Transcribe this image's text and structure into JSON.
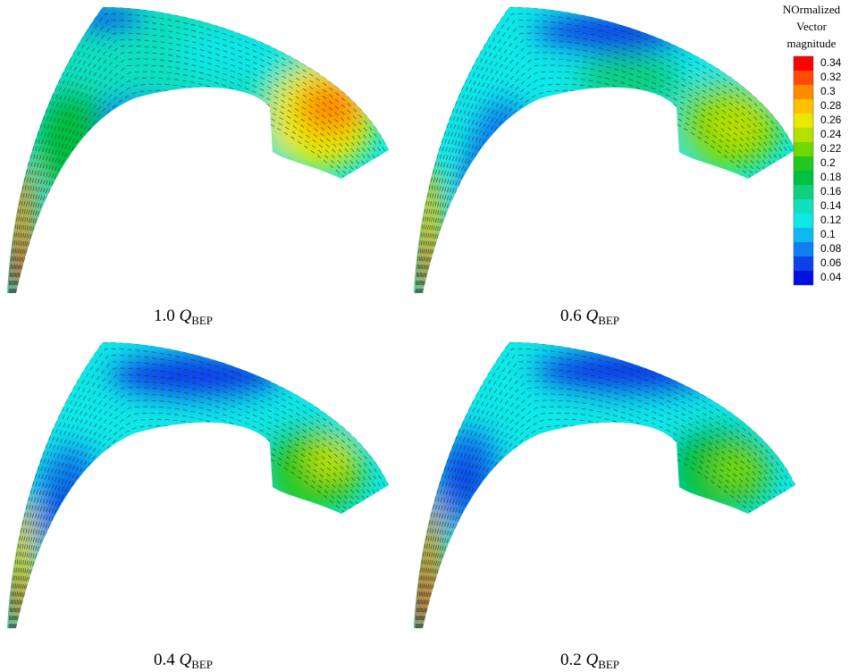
{
  "colorbar": {
    "title": [
      "NOrmalized",
      "Vector",
      "magnitude"
    ],
    "ticks": [
      0.34,
      0.32,
      0.3,
      0.28,
      0.26,
      0.24,
      0.22,
      0.2,
      0.18,
      0.16,
      0.14,
      0.12,
      0.1,
      0.08,
      0.06,
      0.04
    ],
    "colors": [
      "#ff0000",
      "#ff4a00",
      "#ff8c00",
      "#ffc000",
      "#e8e800",
      "#b4e000",
      "#70d800",
      "#20c820",
      "#00c040",
      "#10d080",
      "#10e0c0",
      "#10e8e8",
      "#10b8f0",
      "#1080f0",
      "#1040e8",
      "#0010e0"
    ]
  },
  "panels": [
    {
      "factor": "1.0",
      "symbol": "Q",
      "subscript": "BEP"
    },
    {
      "factor": "0.6",
      "symbol": "Q",
      "subscript": "BEP"
    },
    {
      "factor": "0.4",
      "symbol": "Q",
      "subscript": "BEP"
    },
    {
      "factor": "0.2",
      "symbol": "Q",
      "subscript": "BEP"
    }
  ]
}
